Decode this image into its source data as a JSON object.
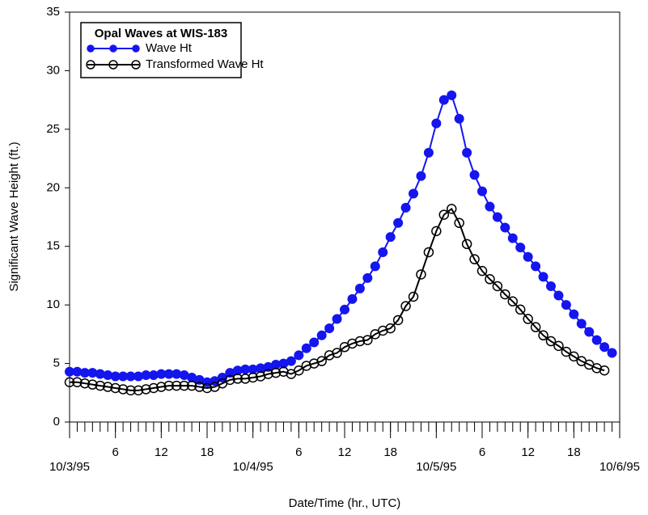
{
  "chart_data": {
    "type": "line",
    "xlabel": "Date/Time (hr., UTC)",
    "ylabel": "Significant Wave Height (ft.)",
    "legend_title": "Opal Waves at WIS-183",
    "legend": "upper left",
    "xlim": [
      0,
      72
    ],
    "xticks": [
      {
        "value": 0,
        "label": "10/3/95"
      },
      6,
      12,
      18,
      {
        "value": 24,
        "label": "10/4/95"
      },
      {
        "value": 30,
        "label": "6"
      },
      {
        "value": 36,
        "label": "12"
      },
      {
        "value": 42,
        "label": "18"
      },
      {
        "value": 48,
        "label": "10/5/95"
      },
      {
        "value": 54,
        "label": "6"
      },
      {
        "value": 60,
        "label": "12"
      },
      {
        "value": 66,
        "label": "18"
      },
      {
        "value": 72,
        "label": "10/6/95"
      }
    ],
    "xminorticks": [
      0,
      1,
      2,
      3,
      4,
      5,
      6,
      7,
      8,
      9,
      10,
      11,
      12,
      13,
      14,
      15,
      16,
      17,
      18,
      19,
      20,
      21,
      22,
      23,
      24,
      25,
      26,
      27,
      28,
      29,
      30,
      31,
      32,
      33,
      34,
      35,
      36,
      37,
      38,
      39,
      40,
      41,
      42,
      43,
      44,
      45,
      46,
      47,
      48,
      49,
      50,
      51,
      52,
      53,
      54,
      55,
      56,
      57,
      58,
      59,
      60,
      61,
      62,
      63,
      64,
      65,
      66,
      67,
      68,
      69,
      70,
      71,
      72
    ],
    "ylim": [
      0,
      35
    ],
    "yticks": [
      0,
      5,
      10,
      15,
      20,
      25,
      30,
      35
    ],
    "series": [
      {
        "name": "Wave Ht",
        "color": "#1515f0",
        "marker": "filled",
        "x": [
          0,
          1,
          2,
          3,
          4,
          5,
          6,
          7,
          8,
          9,
          10,
          11,
          12,
          13,
          14,
          15,
          16,
          17,
          18,
          19,
          20,
          21,
          22,
          23,
          24,
          25,
          26,
          27,
          28,
          29,
          30,
          31,
          32,
          33,
          34,
          35,
          36,
          37,
          38,
          39,
          40,
          41,
          42,
          43,
          44,
          45,
          46,
          47,
          48,
          49,
          50,
          51,
          52,
          53,
          54,
          55,
          56,
          57,
          58,
          59,
          60,
          61,
          62,
          63,
          64,
          65,
          66,
          67,
          68,
          69,
          70,
          71
        ],
        "values": [
          4.3,
          4.3,
          4.2,
          4.2,
          4.1,
          4.0,
          3.9,
          3.9,
          3.9,
          3.9,
          4.0,
          4.0,
          4.1,
          4.1,
          4.1,
          4.0,
          3.8,
          3.6,
          3.4,
          3.5,
          3.8,
          4.2,
          4.4,
          4.5,
          4.5,
          4.6,
          4.7,
          4.9,
          5.0,
          5.2,
          5.7,
          6.3,
          6.8,
          7.4,
          8.0,
          8.8,
          9.6,
          10.5,
          11.4,
          12.3,
          13.3,
          14.5,
          15.8,
          17.0,
          18.3,
          19.5,
          21.0,
          23.0,
          25.5,
          27.5,
          27.9,
          25.9,
          23.0,
          21.1,
          19.7,
          18.4,
          17.5,
          16.6,
          15.7,
          14.9,
          14.1,
          13.3,
          12.4,
          11.6,
          10.8,
          10.0,
          9.2,
          8.4,
          7.7,
          7.0,
          6.4,
          5.9
        ]
      },
      {
        "name": "Transformed Wave Ht",
        "color": "#000000",
        "marker": "open",
        "x": [
          0,
          1,
          2,
          3,
          4,
          5,
          6,
          7,
          8,
          9,
          10,
          11,
          12,
          13,
          14,
          15,
          16,
          17,
          18,
          19,
          20,
          21,
          22,
          23,
          24,
          25,
          26,
          27,
          28,
          29,
          30,
          31,
          32,
          33,
          34,
          35,
          36,
          37,
          38,
          39,
          40,
          41,
          42,
          43,
          44,
          45,
          46,
          47,
          48,
          49,
          50,
          51,
          52,
          53,
          54,
          55,
          56,
          57,
          58,
          59,
          60,
          61,
          62,
          63,
          64,
          65,
          66,
          67,
          68,
          69,
          70
        ],
        "values": [
          3.4,
          3.4,
          3.3,
          3.2,
          3.1,
          3.0,
          2.9,
          2.8,
          2.7,
          2.7,
          2.8,
          2.9,
          3.0,
          3.1,
          3.1,
          3.1,
          3.1,
          3.0,
          2.9,
          3.0,
          3.3,
          3.6,
          3.7,
          3.7,
          3.8,
          3.9,
          4.1,
          4.2,
          4.3,
          4.1,
          4.4,
          4.8,
          5.0,
          5.2,
          5.7,
          5.9,
          6.4,
          6.7,
          6.9,
          7.0,
          7.5,
          7.8,
          8.0,
          8.7,
          9.9,
          10.7,
          12.6,
          14.5,
          16.3,
          17.7,
          18.2,
          17.0,
          15.2,
          13.9,
          12.9,
          12.2,
          11.6,
          10.9,
          10.3,
          9.6,
          8.8,
          8.1,
          7.4,
          6.9,
          6.5,
          6.0,
          5.6,
          5.2,
          4.9,
          4.6,
          4.4
        ]
      }
    ]
  }
}
